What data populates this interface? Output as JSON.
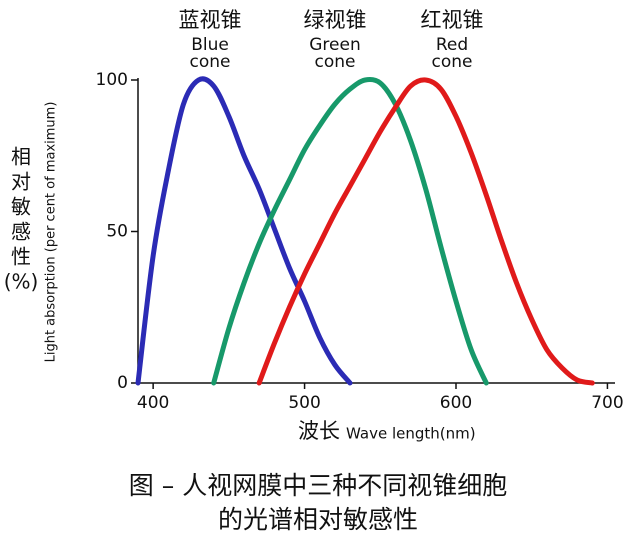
{
  "chart_data": {
    "type": "line",
    "x": [
      390,
      400,
      410,
      420,
      430,
      440,
      450,
      460,
      470,
      480,
      490,
      500,
      510,
      520,
      530,
      540,
      550,
      560,
      570,
      580,
      590,
      600,
      610,
      620,
      630,
      640,
      650,
      660,
      670,
      680,
      690
    ],
    "series": [
      {
        "name": "蓝视锥",
        "label_lines": [
          "Blue",
          "cone"
        ],
        "color": "#2b2bb5",
        "values": [
          0,
          42,
          70,
          92,
          100,
          98,
          88,
          75,
          64,
          51,
          38,
          27,
          15,
          6,
          0,
          null,
          null,
          null,
          null,
          null,
          null,
          null,
          null,
          null,
          null,
          null,
          null,
          null,
          null,
          null,
          null
        ]
      },
      {
        "name": "绿视锥",
        "label_lines": [
          "Green",
          "cone"
        ],
        "color": "#17996a",
        "values": [
          null,
          null,
          null,
          null,
          null,
          0,
          18,
          33,
          46,
          57,
          67,
          77,
          85,
          92,
          97,
          100,
          99,
          92,
          80,
          64,
          45,
          27,
          11,
          0,
          null,
          null,
          null,
          null,
          null,
          null,
          null
        ]
      },
      {
        "name": "红视锥",
        "label_lines": [
          "Red",
          "cone"
        ],
        "color": "#e01a1a",
        "values": [
          null,
          null,
          null,
          null,
          null,
          null,
          null,
          null,
          0,
          13,
          25,
          36,
          46,
          56,
          65,
          74,
          83,
          91,
          98,
          100,
          97,
          88,
          76,
          62,
          47,
          33,
          21,
          11,
          5,
          1,
          0
        ]
      }
    ],
    "xlim": [
      390,
      705
    ],
    "ylim": [
      0,
      100
    ],
    "xticks": [
      400,
      500,
      600,
      700
    ],
    "yticks": [
      0,
      50,
      100
    ],
    "x_label_cn": "波长",
    "x_label": "Wave length(nm)",
    "y_label_cn": [
      "相",
      "对",
      "敏",
      "感",
      "性",
      "(%)"
    ],
    "y_label": "Light absorption (per cent of maximum)",
    "caption": [
      "图 –  人视网膜中三种不同视锥细胞",
      "的光谱相对敏感性"
    ]
  }
}
